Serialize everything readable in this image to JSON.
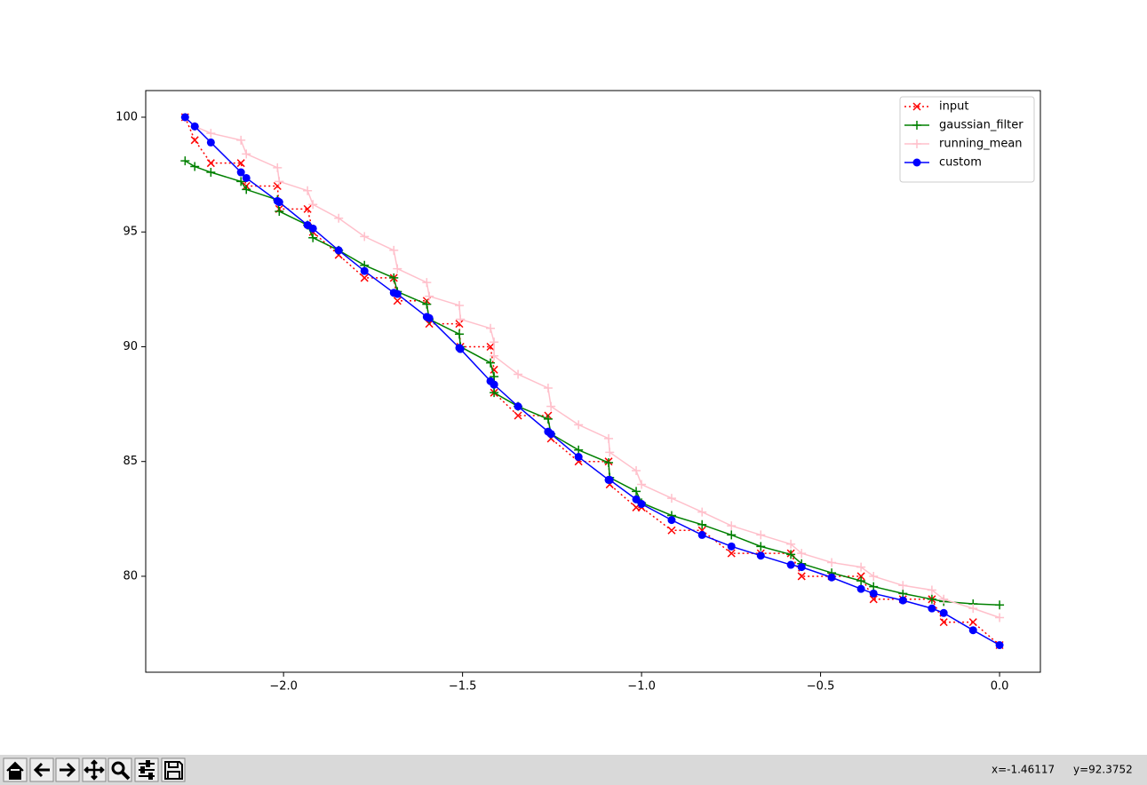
{
  "chart_data": {
    "type": "line",
    "x": [
      -2.275,
      -2.248,
      -2.203,
      -2.119,
      -2.104,
      -2.017,
      -2.012,
      -1.933,
      -1.918,
      -1.846,
      -1.774,
      -1.692,
      -1.682,
      -1.6,
      -1.593,
      -1.509,
      -1.506,
      -1.422,
      -1.412,
      -1.412,
      -1.345,
      -1.261,
      -1.253,
      -1.176,
      -1.092,
      -1.089,
      -1.015,
      -1.0,
      -0.916,
      -0.831,
      -0.749,
      -0.667,
      -0.583,
      -0.553,
      -0.469,
      -0.387,
      -0.352,
      -0.27,
      -0.189,
      -0.156,
      -0.074,
      0.0
    ],
    "series": [
      {
        "name": "input",
        "color": "#ff0000",
        "marker": "x",
        "linestyle": "dotted",
        "values": [
          100,
          99,
          98,
          98,
          97,
          97,
          96,
          96,
          95,
          94,
          93,
          93,
          92,
          92,
          91,
          91,
          90,
          90,
          89,
          88,
          87,
          87,
          86,
          85,
          85,
          84,
          83,
          83,
          82,
          82,
          81,
          81,
          81,
          80,
          80,
          80,
          79,
          79,
          79,
          78,
          78,
          77
        ]
      },
      {
        "name": "gaussian_filter",
        "color": "#008000",
        "marker": "+",
        "linestyle": "solid",
        "values": [
          98.1,
          97.85,
          97.6,
          97.2,
          96.85,
          96.4,
          95.9,
          95.3,
          94.75,
          94.2,
          93.55,
          93.0,
          92.4,
          91.85,
          91.2,
          90.55,
          90.0,
          89.3,
          88.7,
          88.0,
          87.4,
          86.85,
          86.2,
          85.5,
          84.95,
          84.3,
          83.7,
          83.2,
          82.65,
          82.25,
          81.8,
          81.3,
          80.95,
          80.55,
          80.15,
          79.8,
          79.55,
          79.25,
          79.0,
          78.9,
          78.8,
          78.75
        ]
      },
      {
        "name": "running_mean",
        "color": "#ffc0cb",
        "marker": "+",
        "linestyle": "solid",
        "values": [
          100,
          99.6,
          99.3,
          99.0,
          98.4,
          97.8,
          97.2,
          96.8,
          96.2,
          95.6,
          94.8,
          94.2,
          93.4,
          92.8,
          92.2,
          91.8,
          91.2,
          90.8,
          90.2,
          89.6,
          88.8,
          88.2,
          87.4,
          86.6,
          86.0,
          85.4,
          84.6,
          84.0,
          83.4,
          82.8,
          82.2,
          81.8,
          81.4,
          81.0,
          80.6,
          80.4,
          80.0,
          79.6,
          79.4,
          79.0,
          78.6,
          78.2
        ]
      },
      {
        "name": "custom",
        "color": "#0000ff",
        "marker": "o",
        "linestyle": "solid",
        "values": [
          100,
          99.6,
          98.9,
          97.6,
          97.35,
          96.35,
          96.3,
          95.3,
          95.15,
          94.2,
          93.3,
          92.35,
          92.3,
          91.3,
          91.25,
          89.95,
          89.9,
          88.5,
          88.35,
          88.35,
          87.4,
          86.3,
          86.2,
          85.2,
          84.2,
          84.2,
          83.35,
          83.15,
          82.45,
          81.8,
          81.3,
          80.9,
          80.5,
          80.4,
          79.95,
          79.45,
          79.25,
          78.95,
          78.6,
          78.4,
          77.65,
          77.0
        ]
      }
    ],
    "xlim": [
      -2.385,
      0.114
    ],
    "ylim": [
      75.82,
      101.16
    ],
    "xticks": [
      {
        "value": -2.0,
        "label": "−2.0"
      },
      {
        "value": -1.5,
        "label": "−1.5"
      },
      {
        "value": -1.0,
        "label": "−1.0"
      },
      {
        "value": -0.5,
        "label": "−0.5"
      },
      {
        "value": 0.0,
        "label": "0.0"
      }
    ],
    "yticks": [
      80,
      85,
      90,
      95,
      100
    ],
    "grid": false,
    "legend": "upper right"
  },
  "toolbar": {
    "status_x": "x=-1.46117",
    "status_y": "y=92.3752"
  }
}
